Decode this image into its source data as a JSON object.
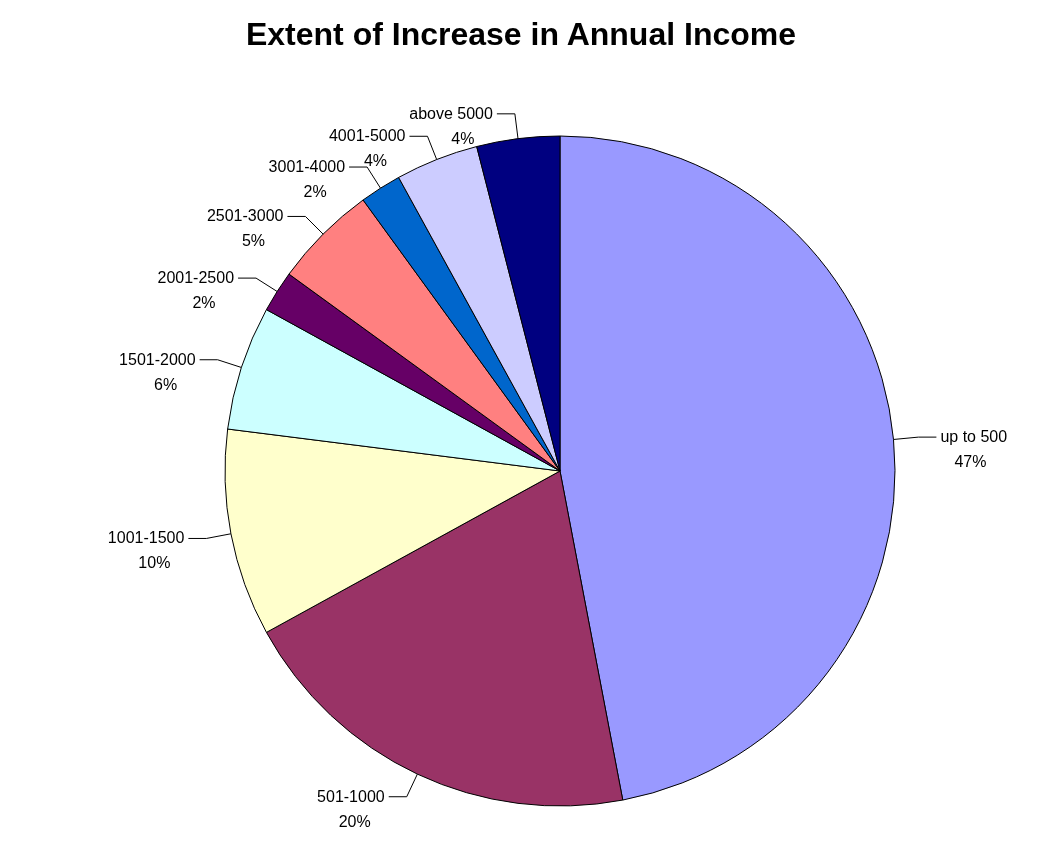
{
  "chart_data": {
    "type": "pie",
    "title": "Extent of Increase in Annual Income",
    "categories": [
      "up to 500",
      "501-1000",
      "1001-1500",
      "1501-2000",
      "2001-2500",
      "2501-3000",
      "3001-4000",
      "4001-5000",
      "above 5000"
    ],
    "values": [
      47,
      20,
      10,
      6,
      2,
      5,
      2,
      4,
      4
    ],
    "value_labels": [
      "47%",
      "20%",
      "10%",
      "6%",
      "2%",
      "5%",
      "2%",
      "4%",
      "4%"
    ],
    "colors": [
      "#9999ff",
      "#993366",
      "#ffffcc",
      "#ccffff",
      "#660066",
      "#ff8080",
      "#0066cc",
      "#ccccff",
      "#000080"
    ],
    "legend": false
  }
}
